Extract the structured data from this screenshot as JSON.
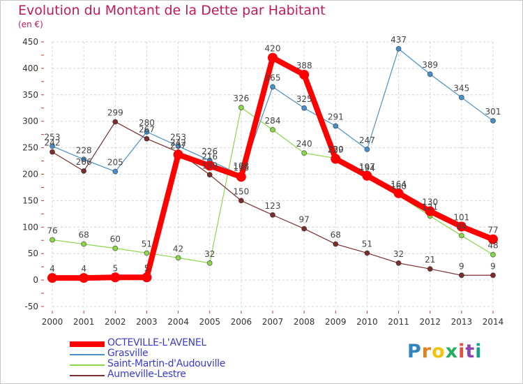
{
  "chart_data": {
    "type": "line",
    "title": "Evolution du Montant de la Dette par Habitant",
    "ylabel": "(en €)",
    "xlabel": "",
    "ylim": [
      -50,
      450
    ],
    "yticks": [
      -50,
      0,
      50,
      100,
      150,
      200,
      250,
      300,
      350,
      400,
      450
    ],
    "x": [
      "2000",
      "2001",
      "2002",
      "2003",
      "2004",
      "2005",
      "2006",
      "2007",
      "2008",
      "2009",
      "2010",
      "2011",
      "2012",
      "2013",
      "2014"
    ],
    "grid": true,
    "legend_position": "bottom-left",
    "series": [
      {
        "name": "OCTEVILLE-L'AVENEL",
        "color": "#ff0000",
        "values": [
          4,
          4,
          5,
          5,
          237,
          216,
          195,
          420,
          388,
          229,
          197,
          164,
          130,
          101,
          77
        ],
        "labels": [
          "4",
          "4",
          "5",
          "5",
          "237",
          "216",
          "195",
          "420",
          "388",
          "229",
          "197",
          "164",
          "130",
          "101",
          "77"
        ]
      },
      {
        "name": "Grasville",
        "color": "#4a90c8",
        "values": [
          253,
          228,
          205,
          280,
          253,
          226,
          198,
          365,
          325,
          291,
          247,
          437,
          389,
          345,
          301
        ],
        "labels": [
          "253",
          "228",
          "205",
          "280",
          "253",
          "226",
          "198",
          "365",
          "325",
          "291",
          "247",
          "437",
          "389",
          "345",
          "301"
        ]
      },
      {
        "name": "Saint-Martin-d'Audouville",
        "color": "#8cd64b",
        "values": [
          76,
          68,
          60,
          51,
          42,
          32,
          326,
          284,
          240,
          230,
          194,
          160,
          121,
          84,
          48
        ],
        "labels": [
          "76",
          "68",
          "60",
          "51",
          "42",
          "32",
          "326",
          "284",
          "240",
          "230",
          "194",
          "160",
          "121",
          "84",
          "48"
        ]
      },
      {
        "name": "Aumeville-Lestre",
        "color": "#7a2f2f",
        "values": [
          242,
          206,
          299,
          267,
          242,
          199,
          150,
          123,
          97,
          68,
          51,
          32,
          21,
          9,
          9
        ],
        "labels": [
          "242",
          "206",
          "299",
          "267",
          "242",
          "199",
          "150",
          "123",
          "97",
          "68",
          "51",
          "32",
          "21",
          "9",
          "9"
        ]
      }
    ]
  },
  "header": {
    "title": "Evolution du Montant de la Dette par Habitant",
    "unit": "(en €)"
  },
  "legend": {
    "items": [
      {
        "label": "OCTEVILLE-L'AVENEL",
        "color": "#ff0000"
      },
      {
        "label": "Grasville",
        "color": "#4a90c8"
      },
      {
        "label": "Saint-Martin-d'Audouville",
        "color": "#8cd64b"
      },
      {
        "label": "Aumeville-Lestre",
        "color": "#7a2f2f"
      }
    ]
  },
  "logo": {
    "p": "P",
    "r": "r",
    "o": "o",
    "x": "x",
    "i": "i",
    "t": "t",
    "i2": "i"
  }
}
